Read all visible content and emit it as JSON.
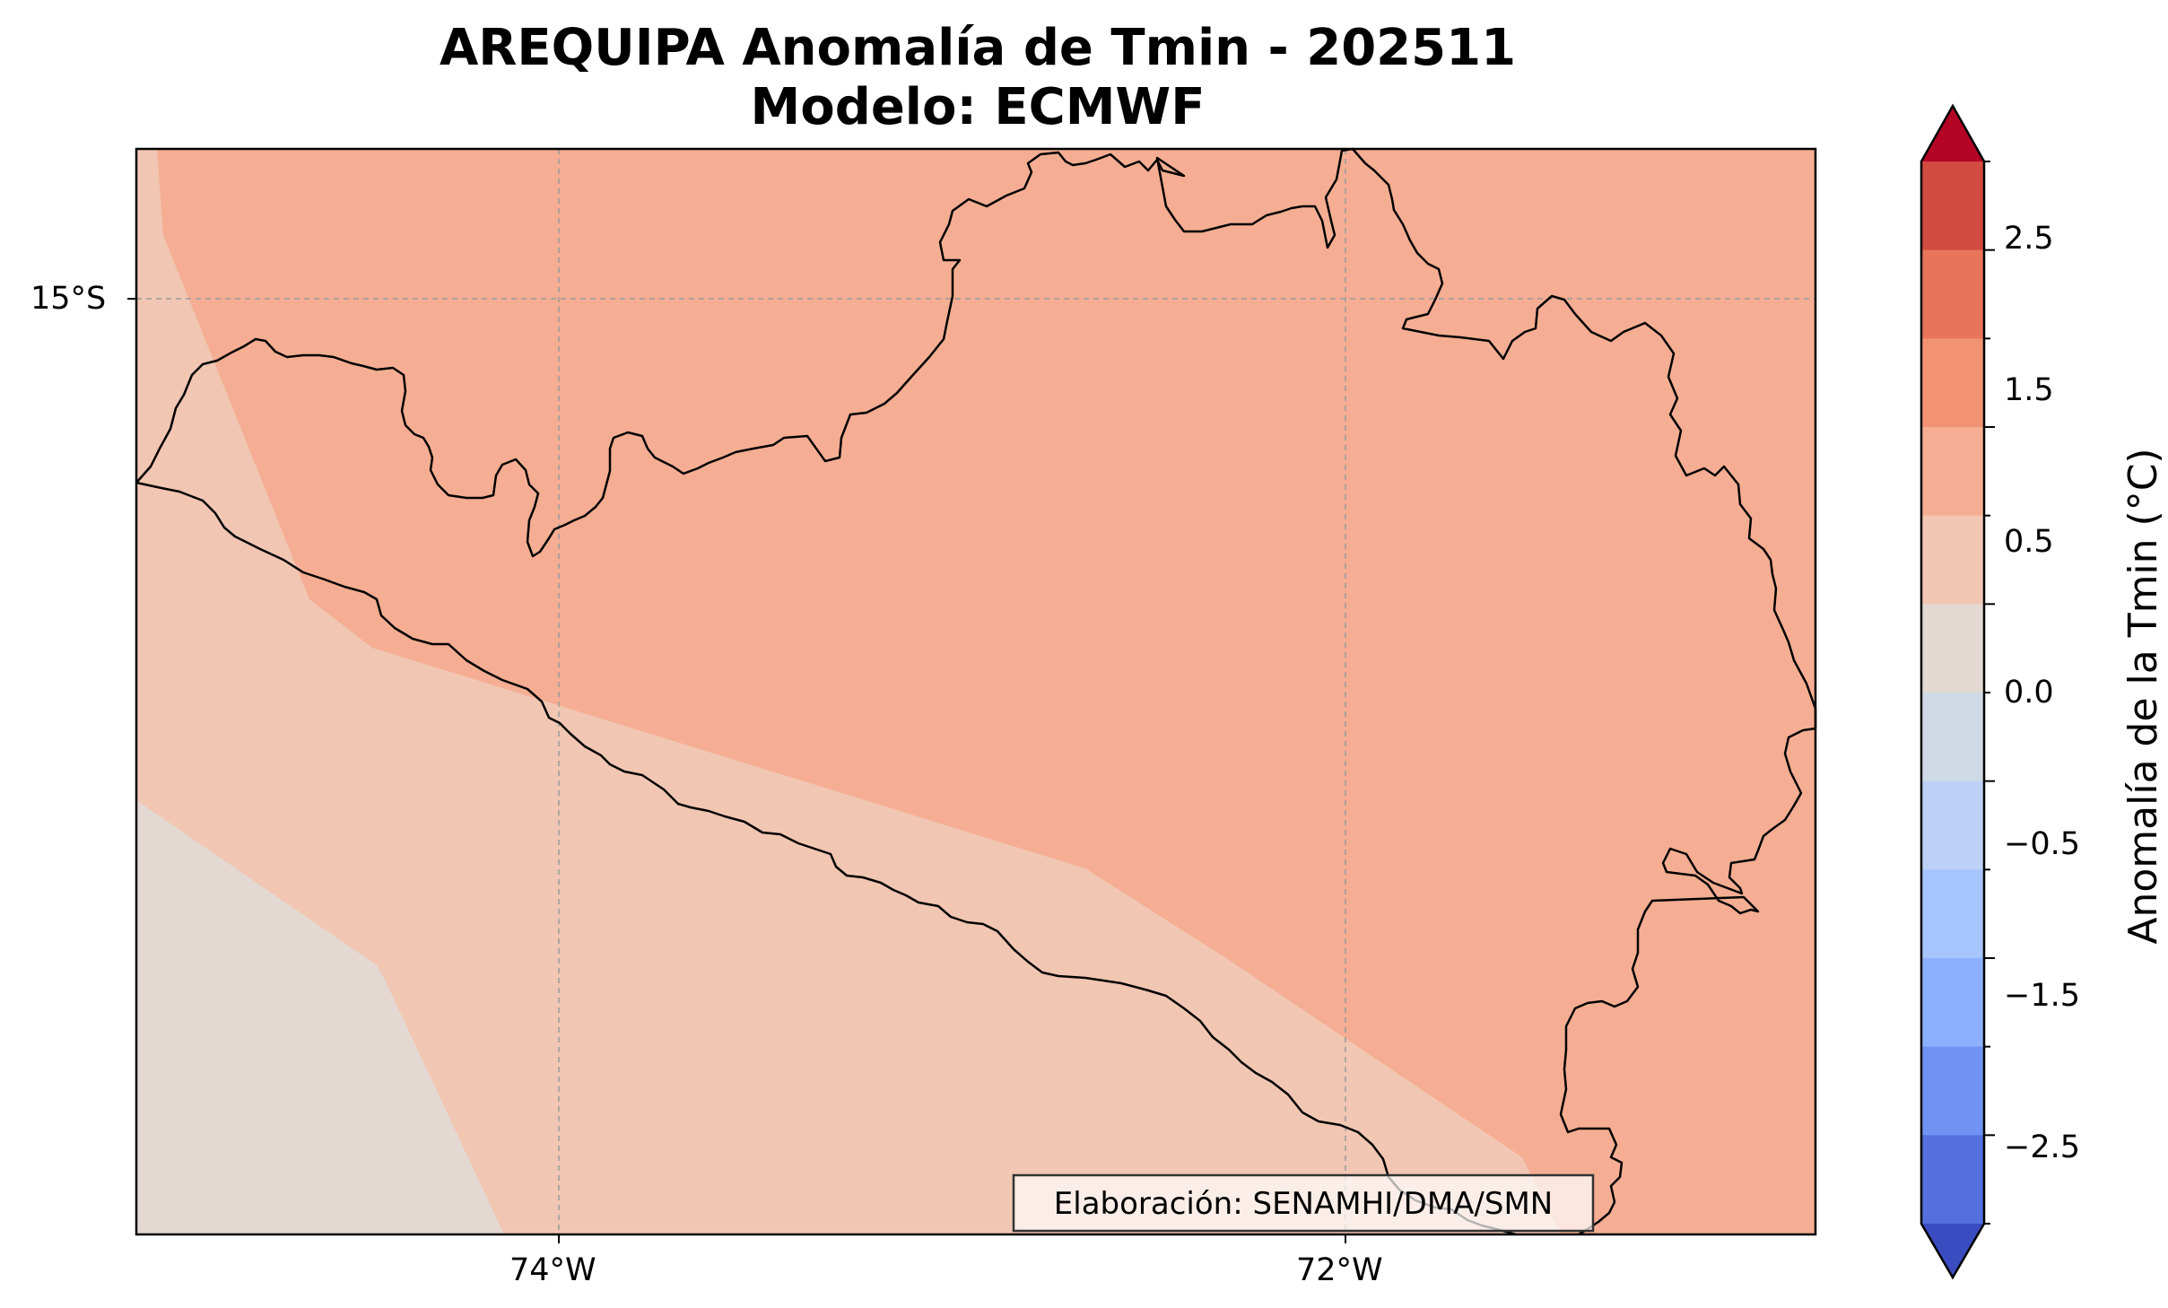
{
  "figure": {
    "title_line1": "AREQUIPA Anomalía de Tmin - 202511",
    "title_line2": "Modelo: ECMWF",
    "credit": "Elaboración: SENAMHI/DMA/SMN"
  },
  "map": {
    "lon_ticks": [
      "74°W",
      "72°W"
    ],
    "lat_ticks": [
      "15°S"
    ],
    "gridlines": true,
    "field_colors": {
      "far_southwest": "#e3d9d2",
      "coastal_band": "#f1c6b2",
      "inland": "#f5ae93"
    }
  },
  "colorbar": {
    "label": "Anomalía de la Tmin (°C)",
    "tick_labels": [
      "2.5",
      "1.5",
      "0.5",
      "0.0",
      "−0.5",
      "−1.5",
      "−2.5"
    ],
    "over_color": "#b40426",
    "under_color": "#3b4cc0",
    "bins_top_to_bottom": [
      "#d24b40",
      "#e7745b",
      "#f29274",
      "#f5ae93",
      "#f1c6b2",
      "#e3d9d2",
      "#d0dae6",
      "#bcd1f5",
      "#a6c4fe",
      "#8db0fe",
      "#6f92f3",
      "#5470de"
    ]
  }
}
